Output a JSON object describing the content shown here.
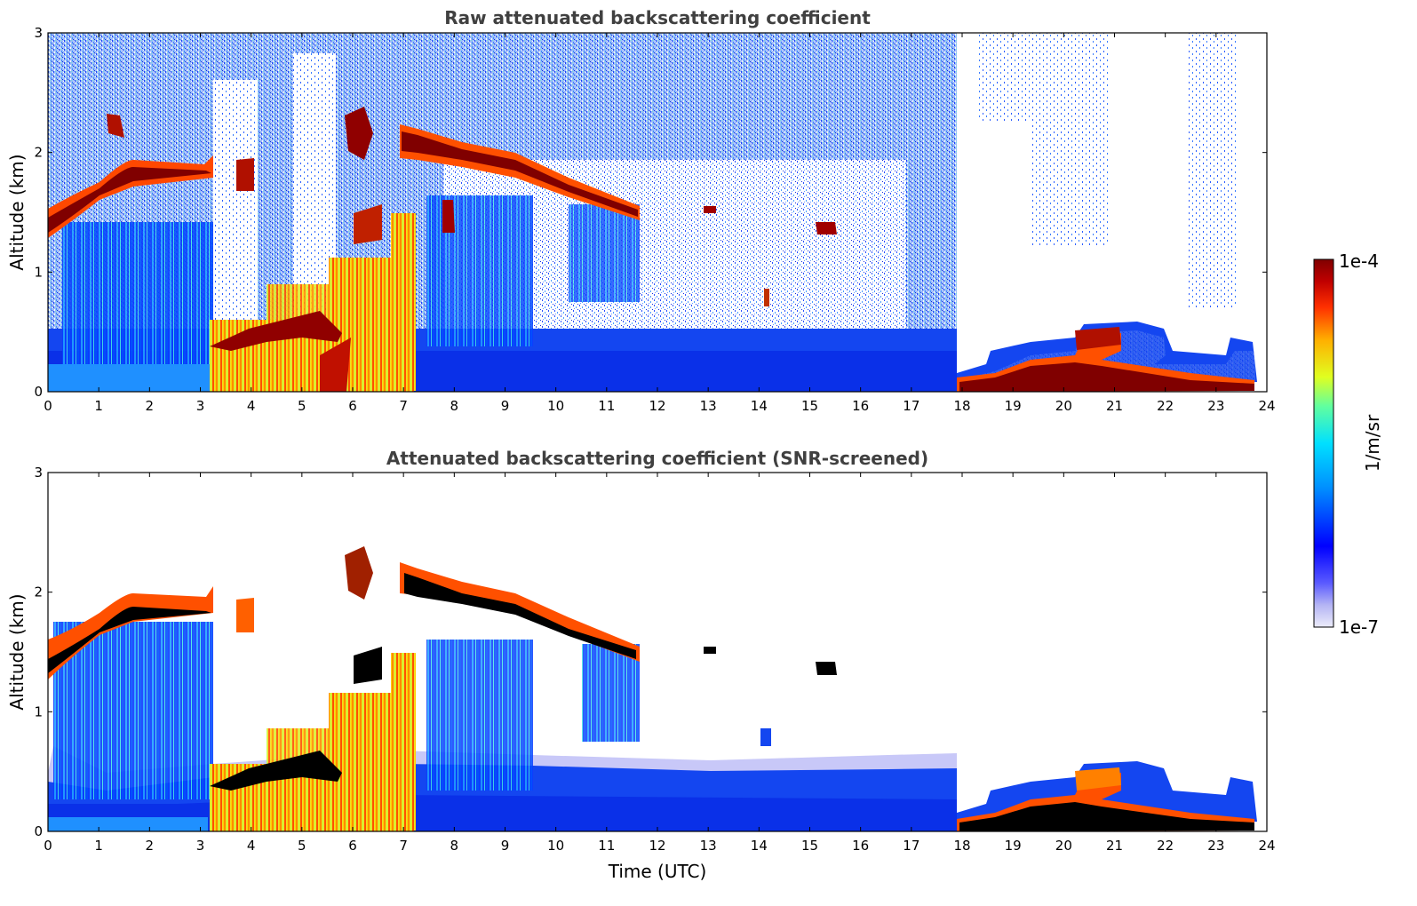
{
  "chart_data": [
    {
      "type": "heatmap",
      "title": "Raw attenuated backscattering coefficient",
      "xlabel": "",
      "ylabel": "Altitude (km)",
      "xlim": [
        0,
        24
      ],
      "ylim": [
        0,
        3
      ],
      "xticks": [
        "0",
        "1",
        "2",
        "3",
        "4",
        "5",
        "6",
        "7",
        "8",
        "9",
        "10",
        "11",
        "12",
        "13",
        "14",
        "15",
        "16",
        "17",
        "18",
        "19",
        "20",
        "21",
        "22",
        "23",
        "24"
      ],
      "yticks": [
        "0",
        "1",
        "2",
        "3"
      ],
      "cloud_layer_top_km": [
        {
          "x": 0,
          "y": 1.3
        },
        {
          "x": 0.5,
          "y": 1.55
        },
        {
          "x": 1.0,
          "y": 1.7
        },
        {
          "x": 1.5,
          "y": 1.85
        },
        {
          "x": 2.0,
          "y": 1.8
        },
        {
          "x": 2.5,
          "y": 1.78
        },
        {
          "x": 3.0,
          "y": 1.85
        },
        {
          "x": 7.2,
          "y": 2.05
        },
        {
          "x": 8.0,
          "y": 1.95
        },
        {
          "x": 9.0,
          "y": 1.9
        },
        {
          "x": 10.0,
          "y": 1.75
        },
        {
          "x": 11.0,
          "y": 1.6
        },
        {
          "x": 11.6,
          "y": 1.5
        }
      ],
      "low_layer_km": [
        {
          "x": 17.9,
          "y": 0.1
        },
        {
          "x": 18.5,
          "y": 0.15
        },
        {
          "x": 19.0,
          "y": 0.25
        },
        {
          "x": 19.5,
          "y": 0.3
        },
        {
          "x": 20.0,
          "y": 0.28
        },
        {
          "x": 20.5,
          "y": 0.4
        },
        {
          "x": 21.0,
          "y": 0.45
        },
        {
          "x": 21.5,
          "y": 0.5
        },
        {
          "x": 22.0,
          "y": 0.42
        },
        {
          "x": 23.0,
          "y": 0.2
        },
        {
          "x": 23.8,
          "y": 0.3
        }
      ]
    },
    {
      "type": "heatmap",
      "title": "Attenuated backscattering coefficient (SNR-screened)",
      "xlabel": "Time (UTC)",
      "ylabel": "Altitude (km)",
      "xlim": [
        0,
        24
      ],
      "ylim": [
        0,
        3
      ],
      "xticks": [
        "0",
        "1",
        "2",
        "3",
        "4",
        "5",
        "6",
        "7",
        "8",
        "9",
        "10",
        "11",
        "12",
        "13",
        "14",
        "15",
        "16",
        "17",
        "18",
        "19",
        "20",
        "21",
        "22",
        "23",
        "24"
      ],
      "yticks": [
        "0",
        "1",
        "2",
        "3"
      ]
    }
  ],
  "colorbar": {
    "label": "1/m/sr",
    "max_label": "1e-4",
    "min_label": "1e-7",
    "range": [
      1e-07,
      0.0001
    ],
    "scale": "log",
    "colors": [
      "#ececfa",
      "#b4b4f4",
      "#0000ff",
      "#0080ff",
      "#00e0ff",
      "#60ffa0",
      "#e0ff20",
      "#ffc000",
      "#ff4000",
      "#c80000",
      "#800000"
    ]
  },
  "colors": {
    "background": "#ffffff",
    "title": "#404040",
    "clear_sky_noise": "#1e3cff",
    "boundary_layer": "#1446f0",
    "cloud": "#800000",
    "screened_cloud_core": "#000000"
  }
}
